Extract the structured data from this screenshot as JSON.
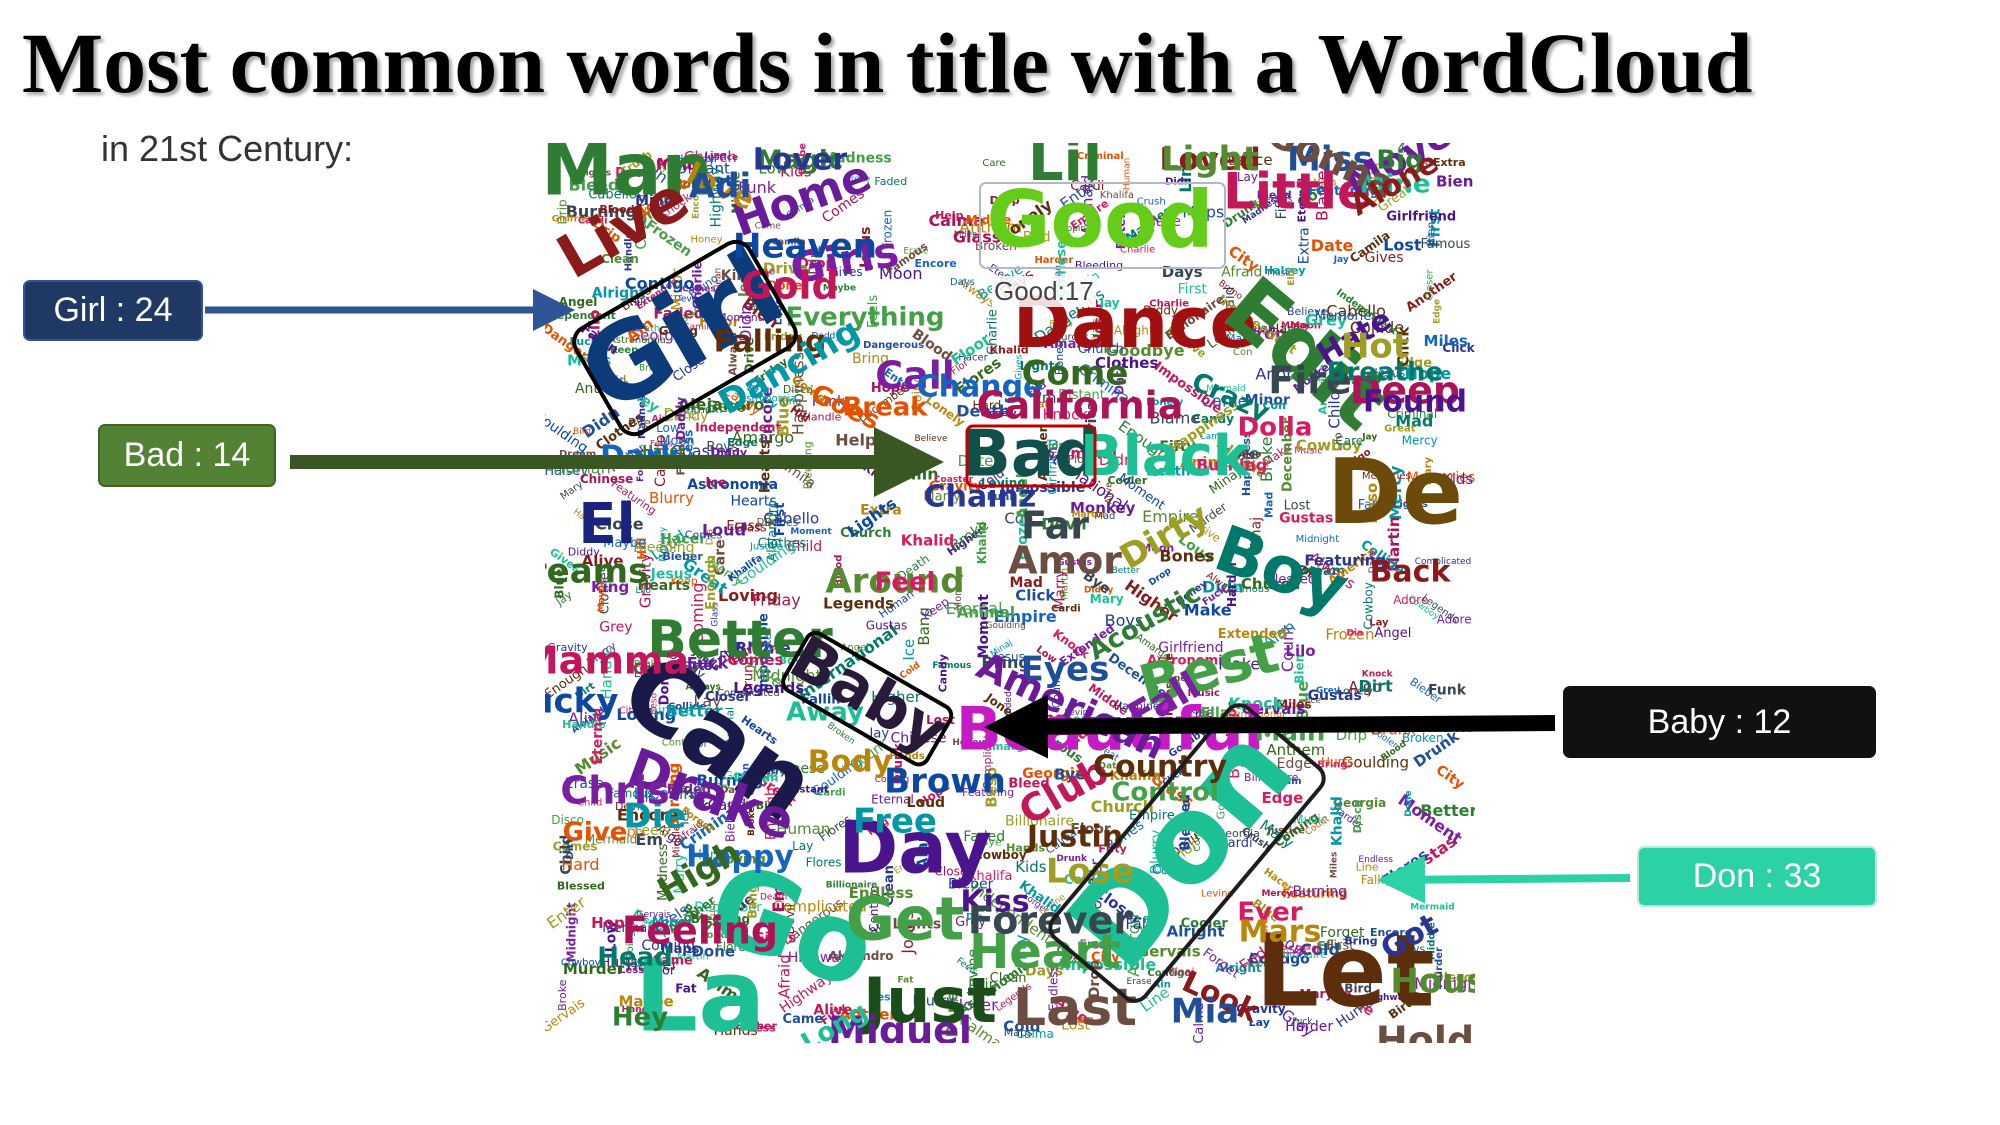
{
  "slide": {
    "title": "Most common words in title with a WordCloud",
    "subtitle": "in 21st Century:"
  },
  "callouts": {
    "girl": {
      "label": "Girl : 24",
      "word": "Girl",
      "count": 24,
      "color": "#203864"
    },
    "bad": {
      "label": "Bad : 14",
      "word": "Bad",
      "count": 14,
      "color": "#548235"
    },
    "baby": {
      "label": "Baby : 12",
      "word": "Baby",
      "count": 12,
      "color": "#111111"
    },
    "don": {
      "label": "Don : 33",
      "word": "Don",
      "count": 33,
      "color": "#2dd1a6"
    },
    "good": {
      "label": "Good:17",
      "word": "Good",
      "count": 17
    }
  },
  "cloud_words": {
    "large": [
      "Man",
      "Live",
      "Girl",
      "Home",
      "Girls",
      "Good",
      "Lil",
      "Little",
      "Dance",
      "Edit",
      "Bad",
      "Black",
      "De",
      "El",
      "Boy",
      "Better",
      "Baby",
      "Can",
      "Beautiful",
      "Best",
      "Drake",
      "Day",
      "Go",
      "La",
      "Don",
      "Let",
      "Just",
      "Last",
      "Get",
      "Heart"
    ],
    "medium": [
      "Magic",
      "Loved",
      "Miss",
      "Move",
      "Mine",
      "love",
      "Heaven",
      "Gold",
      "Everything",
      "Falling",
      "Dancing",
      "Call",
      "Break",
      "Change",
      "Come",
      "California",
      "Crazy",
      "Hate",
      "Hot",
      "Fire",
      "Dolla",
      "Chainz",
      "Around",
      "Amor",
      "Acoustic",
      "Back",
      "Eyes",
      "American",
      "Away",
      "Body",
      "Brown",
      "Club",
      "Control",
      "Country",
      "Die",
      "Chris",
      "Give",
      "Happy",
      "High",
      "Feeling",
      "Head",
      "Kiss",
      "Lose",
      "Forever",
      "Ever",
      "Got",
      "House",
      "Hold",
      "Hey",
      "Look",
      "Mia",
      "Miguel",
      "Long",
      "Mars",
      "Lucky",
      "Mamma",
      "Main",
      "Justin",
      "Free",
      "Fall",
      "Goes",
      "Dark",
      "Dreams",
      "Deep",
      "Breathe",
      "Found",
      "Dirty",
      "Far",
      "Feel",
      "Lover",
      "Light",
      "Gonna",
      "Big",
      "Alone",
      "Adi"
    ],
    "small": [
      "Minaj",
      "Mermaid",
      "Madness",
      "Martin",
      "Loud",
      "Lonely",
      "Kids",
      "Less",
      "Monkey",
      "Miles",
      "Mercy",
      "Higher",
      "Human",
      "Hope",
      "Hearts",
      "Halsey",
      "Grey",
      "Funk",
      "Flor",
      "Devil",
      "Drop",
      "Encore",
      "Enter",
      "Disco",
      "Diddy",
      "Ella",
      "Gravity",
      "Coming",
      "Closer",
      "Bruno",
      "Calma",
      "Cardi",
      "Chinese",
      "Charlie",
      "Cowboy",
      "Bien",
      "Believe",
      "Blood",
      "Broke",
      "Camila",
      "Burning",
      "Bring",
      "Bird",
      "Astronomia",
      "Bleeding",
      "Billionaire",
      "Bieber",
      "Blurry",
      "Alive",
      "Alright",
      "Algo",
      "Anthem",
      "Always",
      "Amargo",
      "Blue",
      "Bye",
      "Church",
      "Coaster",
      "Cooler",
      "Click",
      "Child",
      "Forget",
      "Feels",
      "Eternal",
      "Flores",
      "Dia",
      "Fat",
      "Drunk",
      "Came",
      "Comes",
      "Gustas",
      "Goulding",
      "Honey",
      "Hill",
      "Gervais",
      "Great",
      "Hands",
      "Independent",
      "Impossible",
      "Lilo",
      "Mad",
      "Moon",
      "Middle",
      "Make",
      "Murder",
      "Maybe",
      "Knock",
      "Jones",
      "Khalid",
      "Legends",
      "Jesus",
      "Lost",
      "Mary",
      "Lay",
      "King",
      "Jay",
      "Lights",
      "Loving",
      "Minor",
      "Music",
      "Moment",
      "Marry",
      "Low",
      "Happiness",
      "Going",
      "Extra",
      "First",
      "Enough",
      "Con",
      "City",
      "Contigo",
      "Criminal",
      "Candy",
      "Days",
      "Dangerous",
      "Em",
      "Date",
      "Drip",
      "Edge",
      "Death",
      "Fallin",
      "Famous",
      "Friday",
      "Fuck",
      "Featuring",
      "Gives",
      "Glass",
      "Distant",
      "Fifty",
      "Done",
      "Erase",
      "Dirt",
      "Didn",
      "Harder",
      "Hacer",
      "Ice",
      "Khalifa",
      "Justice",
      "Levine",
      "International",
      "Keep",
      "Line",
      "Memories",
      "Midnight",
      "Maps",
      "Help",
      "Hard",
      "Highway",
      "Hurts",
      "Frozen",
      "Endless",
      "Drive",
      "Daddy",
      "Count",
      "Complicated",
      "Close",
      "Clothes",
      "Crush",
      "Collide",
      "Clean",
      "Care",
      "Empire",
      "Dream",
      "Extended",
      "December",
      "Floor",
      "Goodbye",
      "Girlfriend",
      "Handle",
      "Georgia",
      "Faded",
      "Cold",
      "Broken",
      "Beso",
      "Alan",
      "Adore",
      "Afraid",
      "Alejandro",
      "America",
      "Angel",
      "Animal",
      "Ain",
      "Blessed",
      "Boys",
      "Bang",
      "Bleed",
      "Bones",
      "Cabello",
      "Another",
      "Blame",
      "Better"
    ]
  }
}
